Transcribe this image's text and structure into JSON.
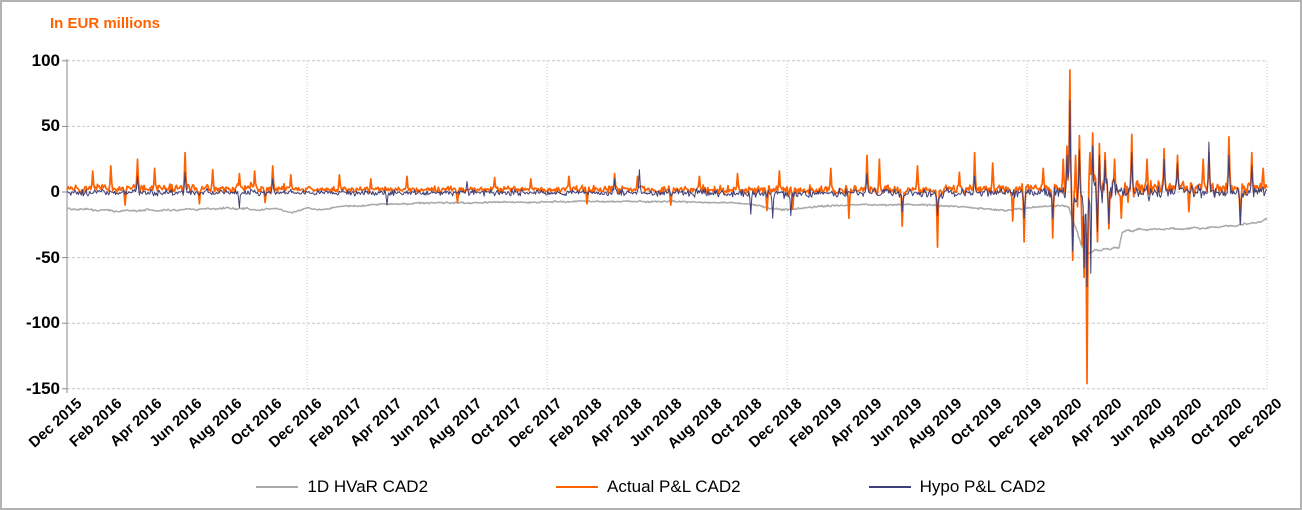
{
  "title": "In EUR millions",
  "legend": [
    {
      "label": "1D HVaR CAD2",
      "color": "#a9a9a9"
    },
    {
      "label": "Actual P&L CAD2",
      "color": "#ff6200"
    },
    {
      "label": "Hypo P&L CAD2",
      "color": "#3f3f7a"
    }
  ],
  "colors": {
    "title": "#ff6200",
    "grid": "#c9c9c9",
    "axis": "#8a8a8a",
    "hvar": "#a9a9a9",
    "actual": "#ff6200",
    "hypo": "#3f3f7a"
  },
  "chart_data": {
    "type": "line",
    "title": "In EUR millions",
    "xlabel": "",
    "ylabel": "",
    "ylim": [
      -150,
      100
    ],
    "y_ticks": [
      100,
      50,
      0,
      -50,
      -100,
      -150
    ],
    "y_tick_labels": [
      "100",
      "50",
      "0",
      "-50",
      "-100",
      "-150"
    ],
    "x_tick_labels": [
      "Dec 2015",
      "Feb 2016",
      "Apr 2016",
      "Jun 2016",
      "Aug 2016",
      "Oct 2016",
      "Dec 2016",
      "Feb 2017",
      "Apr 2017",
      "Jun 2017",
      "Aug 2017",
      "Oct 2017",
      "Dec 2017",
      "Feb 2018",
      "Apr 2018",
      "Jun 2018",
      "Aug 2018",
      "Oct 2018",
      "Dec 2018",
      "Feb 2019",
      "Apr 2019",
      "Jun 2019",
      "Aug 2019",
      "Oct 2019",
      "Dec 2019",
      "Feb 2020",
      "Apr 2020",
      "Jun 2020",
      "Aug 2020",
      "Oct 2020",
      "Dec 2020"
    ],
    "x_epoch_label": "Dec 2015",
    "x_range_months": [
      0,
      60
    ],
    "x_tick_step_months": 2,
    "grid": {
      "horizontal": "dashed",
      "vertical_at_months": [
        12,
        24,
        36,
        48,
        60
      ]
    },
    "legend_position": "bottom",
    "noise_seed": 9,
    "days_per_month": 21,
    "series": [
      {
        "name": "1D HVaR CAD2",
        "color": "#a9a9a9",
        "style": "smooth-jitter",
        "stroke_width": 1.5,
        "jitter": 0.8,
        "points": [
          [
            0,
            -12.5
          ],
          [
            0.5,
            -13.5
          ],
          [
            1,
            -13
          ],
          [
            1.5,
            -14
          ],
          [
            2,
            -13.5
          ],
          [
            2.5,
            -15
          ],
          [
            3,
            -14
          ],
          [
            3.5,
            -14.5
          ],
          [
            4,
            -13.5
          ],
          [
            4.5,
            -14.5
          ],
          [
            5,
            -13.5
          ],
          [
            5.5,
            -14
          ],
          [
            6,
            -13
          ],
          [
            6.5,
            -13.5
          ],
          [
            7,
            -12.5
          ],
          [
            7.5,
            -13
          ],
          [
            8,
            -12
          ],
          [
            8.5,
            -13
          ],
          [
            9,
            -12.5
          ],
          [
            9.5,
            -14
          ],
          [
            10,
            -13
          ],
          [
            10.5,
            -12.5
          ],
          [
            11.2,
            -16
          ],
          [
            11.6,
            -14
          ],
          [
            12,
            -12.5
          ],
          [
            12.8,
            -13.5
          ],
          [
            13.5,
            -11.5
          ],
          [
            14,
            -10.5
          ],
          [
            14.5,
            -11
          ],
          [
            15,
            -10
          ],
          [
            15.5,
            -9.5
          ],
          [
            16,
            -9
          ],
          [
            16.5,
            -9.5
          ],
          [
            17,
            -9
          ],
          [
            17.5,
            -8.5
          ],
          [
            18,
            -8.5
          ],
          [
            19,
            -8
          ],
          [
            20,
            -8.5
          ],
          [
            21,
            -8
          ],
          [
            22,
            -7.5
          ],
          [
            23,
            -8
          ],
          [
            24,
            -7.5
          ],
          [
            25,
            -7.5
          ],
          [
            26,
            -7
          ],
          [
            27,
            -7.5
          ],
          [
            28,
            -7
          ],
          [
            29,
            -7.5
          ],
          [
            30,
            -7
          ],
          [
            31,
            -7.5
          ],
          [
            32,
            -8
          ],
          [
            33,
            -8
          ],
          [
            34,
            -9
          ],
          [
            34.6,
            -10.5
          ],
          [
            35.2,
            -12.5
          ],
          [
            35.8,
            -13.5
          ],
          [
            36.4,
            -13
          ],
          [
            37,
            -12
          ],
          [
            37.6,
            -11
          ],
          [
            38.2,
            -10.5
          ],
          [
            39,
            -10
          ],
          [
            40,
            -9.5
          ],
          [
            41,
            -10
          ],
          [
            42,
            -9.5
          ],
          [
            43,
            -10
          ],
          [
            44,
            -10.5
          ],
          [
            44.8,
            -11.5
          ],
          [
            45.6,
            -12.5
          ],
          [
            46.4,
            -13.5
          ],
          [
            47,
            -14
          ],
          [
            47.6,
            -13
          ],
          [
            48.2,
            -12
          ],
          [
            48.8,
            -11
          ],
          [
            49.4,
            -10.5
          ],
          [
            49.8,
            -10.5
          ],
          [
            50.1,
            -12
          ],
          [
            50.3,
            -22
          ],
          [
            50.5,
            -30
          ],
          [
            50.7,
            -40
          ],
          [
            50.9,
            -45
          ],
          [
            51.1,
            -47
          ],
          [
            51.4,
            -44
          ],
          [
            51.7,
            -45
          ],
          [
            51.9,
            -43
          ],
          [
            52.1,
            -44
          ],
          [
            52.35,
            -42
          ],
          [
            52.6,
            -43
          ],
          [
            52.75,
            -31
          ],
          [
            53,
            -29
          ],
          [
            53.3,
            -30
          ],
          [
            53.6,
            -28
          ],
          [
            54,
            -29
          ],
          [
            54.4,
            -28
          ],
          [
            54.8,
            -28.5
          ],
          [
            55.2,
            -27.5
          ],
          [
            55.6,
            -28.5
          ],
          [
            56,
            -28
          ],
          [
            56.4,
            -27
          ],
          [
            56.8,
            -28
          ],
          [
            57.2,
            -26.5
          ],
          [
            57.6,
            -27
          ],
          [
            58,
            -25.5
          ],
          [
            58.4,
            -26
          ],
          [
            58.8,
            -24.5
          ],
          [
            59.2,
            -24
          ],
          [
            59.6,
            -23
          ],
          [
            60,
            -20.5
          ]
        ]
      },
      {
        "name": "Actual P&L CAD2",
        "color": "#ff6200",
        "style": "noisy-daily",
        "stroke_width": 1.7,
        "base": [
          [
            0,
            2.5,
            5
          ],
          [
            11,
            2.5,
            4.5
          ],
          [
            12.5,
            2,
            3.2
          ],
          [
            23,
            2,
            3.2
          ],
          [
            24.5,
            2,
            4
          ],
          [
            33,
            2,
            4.8
          ],
          [
            37,
            1.5,
            5
          ],
          [
            48,
            2,
            5.5
          ],
          [
            49.5,
            2.5,
            7
          ],
          [
            49.9,
            0,
            14
          ],
          [
            50.4,
            0,
            26
          ],
          [
            51.6,
            0,
            22
          ],
          [
            52.4,
            0,
            14
          ],
          [
            53.2,
            2,
            10
          ],
          [
            54,
            3,
            9
          ],
          [
            56,
            3,
            8
          ],
          [
            60,
            3,
            7
          ]
        ],
        "spikes": [
          [
            1.3,
            16
          ],
          [
            2.2,
            20
          ],
          [
            2.9,
            -10
          ],
          [
            3.5,
            25
          ],
          [
            4.4,
            18
          ],
          [
            5.9,
            30
          ],
          [
            6.6,
            -9
          ],
          [
            7.3,
            17
          ],
          [
            8.6,
            14
          ],
          [
            9.4,
            16
          ],
          [
            9.9,
            -8
          ],
          [
            10.3,
            20
          ],
          [
            11.2,
            13
          ],
          [
            13.6,
            13
          ],
          [
            15.2,
            10
          ],
          [
            17.0,
            12
          ],
          [
            19.5,
            -8
          ],
          [
            21.4,
            11
          ],
          [
            23.2,
            10
          ],
          [
            25.1,
            12
          ],
          [
            26.0,
            -9
          ],
          [
            27.4,
            14
          ],
          [
            28.5,
            12
          ],
          [
            30.2,
            -10
          ],
          [
            31.6,
            12
          ],
          [
            33.5,
            14
          ],
          [
            35.0,
            -14
          ],
          [
            35.6,
            16
          ],
          [
            36.3,
            -13
          ],
          [
            38.2,
            18
          ],
          [
            39.1,
            -20
          ],
          [
            40.0,
            28
          ],
          [
            40.6,
            25
          ],
          [
            41.75,
            -26
          ],
          [
            42.5,
            20
          ],
          [
            43.5,
            -42
          ],
          [
            44.6,
            15
          ],
          [
            45.4,
            30
          ],
          [
            46.3,
            22
          ],
          [
            47.3,
            -22
          ],
          [
            47.85,
            -38
          ],
          [
            48.8,
            18
          ],
          [
            49.3,
            -35
          ],
          [
            49.8,
            25
          ],
          [
            50.0,
            35
          ],
          [
            50.15,
            93
          ],
          [
            50.3,
            -52
          ],
          [
            50.45,
            28
          ],
          [
            50.6,
            43
          ],
          [
            50.75,
            -40
          ],
          [
            50.85,
            -65
          ],
          [
            51.0,
            -146
          ],
          [
            51.15,
            30
          ],
          [
            51.3,
            45
          ],
          [
            51.5,
            -38
          ],
          [
            51.6,
            37
          ],
          [
            51.9,
            30
          ],
          [
            52.1,
            -28
          ],
          [
            52.4,
            25
          ],
          [
            52.7,
            -20
          ],
          [
            53.25,
            44
          ],
          [
            54.0,
            25
          ],
          [
            54.85,
            33
          ],
          [
            55.5,
            28
          ],
          [
            56.1,
            -15
          ],
          [
            56.8,
            25
          ],
          [
            57.1,
            30
          ],
          [
            58.1,
            42
          ],
          [
            58.65,
            -23
          ],
          [
            59.25,
            30
          ],
          [
            59.8,
            18
          ]
        ]
      },
      {
        "name": "Hypo P&L CAD2",
        "color": "#3f3f7a",
        "style": "noisy-daily",
        "stroke_width": 1.0,
        "base": [
          [
            0,
            -0.5,
            4
          ],
          [
            12,
            -0.5,
            3
          ],
          [
            24,
            -0.5,
            3.4
          ],
          [
            33,
            -1,
            4.5
          ],
          [
            37,
            -1,
            4.5
          ],
          [
            48,
            -0.5,
            5
          ],
          [
            49.5,
            -0.5,
            6
          ],
          [
            49.9,
            0,
            10
          ],
          [
            50.4,
            0,
            20
          ],
          [
            51.6,
            0,
            17
          ],
          [
            52.4,
            0,
            11
          ],
          [
            53.2,
            0,
            7
          ],
          [
            56,
            0,
            6.5
          ],
          [
            60,
            0,
            6
          ]
        ],
        "spikes": [
          [
            3.5,
            12
          ],
          [
            5.9,
            15
          ],
          [
            8.6,
            -12
          ],
          [
            10.3,
            10
          ],
          [
            16.0,
            -10
          ],
          [
            20.0,
            8
          ],
          [
            27.4,
            10
          ],
          [
            28.6,
            17
          ],
          [
            34.2,
            -17
          ],
          [
            35.3,
            -20
          ],
          [
            36.2,
            -18
          ],
          [
            40.0,
            14
          ],
          [
            41.75,
            -15
          ],
          [
            43.5,
            -18
          ],
          [
            45.4,
            12
          ],
          [
            47.85,
            -20
          ],
          [
            49.3,
            -20
          ],
          [
            50.0,
            28
          ],
          [
            50.15,
            70
          ],
          [
            50.3,
            -45
          ],
          [
            50.6,
            32
          ],
          [
            50.85,
            -58
          ],
          [
            51.0,
            -72
          ],
          [
            51.2,
            -62
          ],
          [
            51.3,
            35
          ],
          [
            51.5,
            -30
          ],
          [
            51.6,
            28
          ],
          [
            51.9,
            24
          ],
          [
            52.1,
            -24
          ],
          [
            53.25,
            30
          ],
          [
            54.85,
            25
          ],
          [
            55.5,
            22
          ],
          [
            57.1,
            38
          ],
          [
            58.1,
            28
          ],
          [
            58.65,
            -25
          ],
          [
            59.25,
            20
          ]
        ]
      }
    ]
  }
}
